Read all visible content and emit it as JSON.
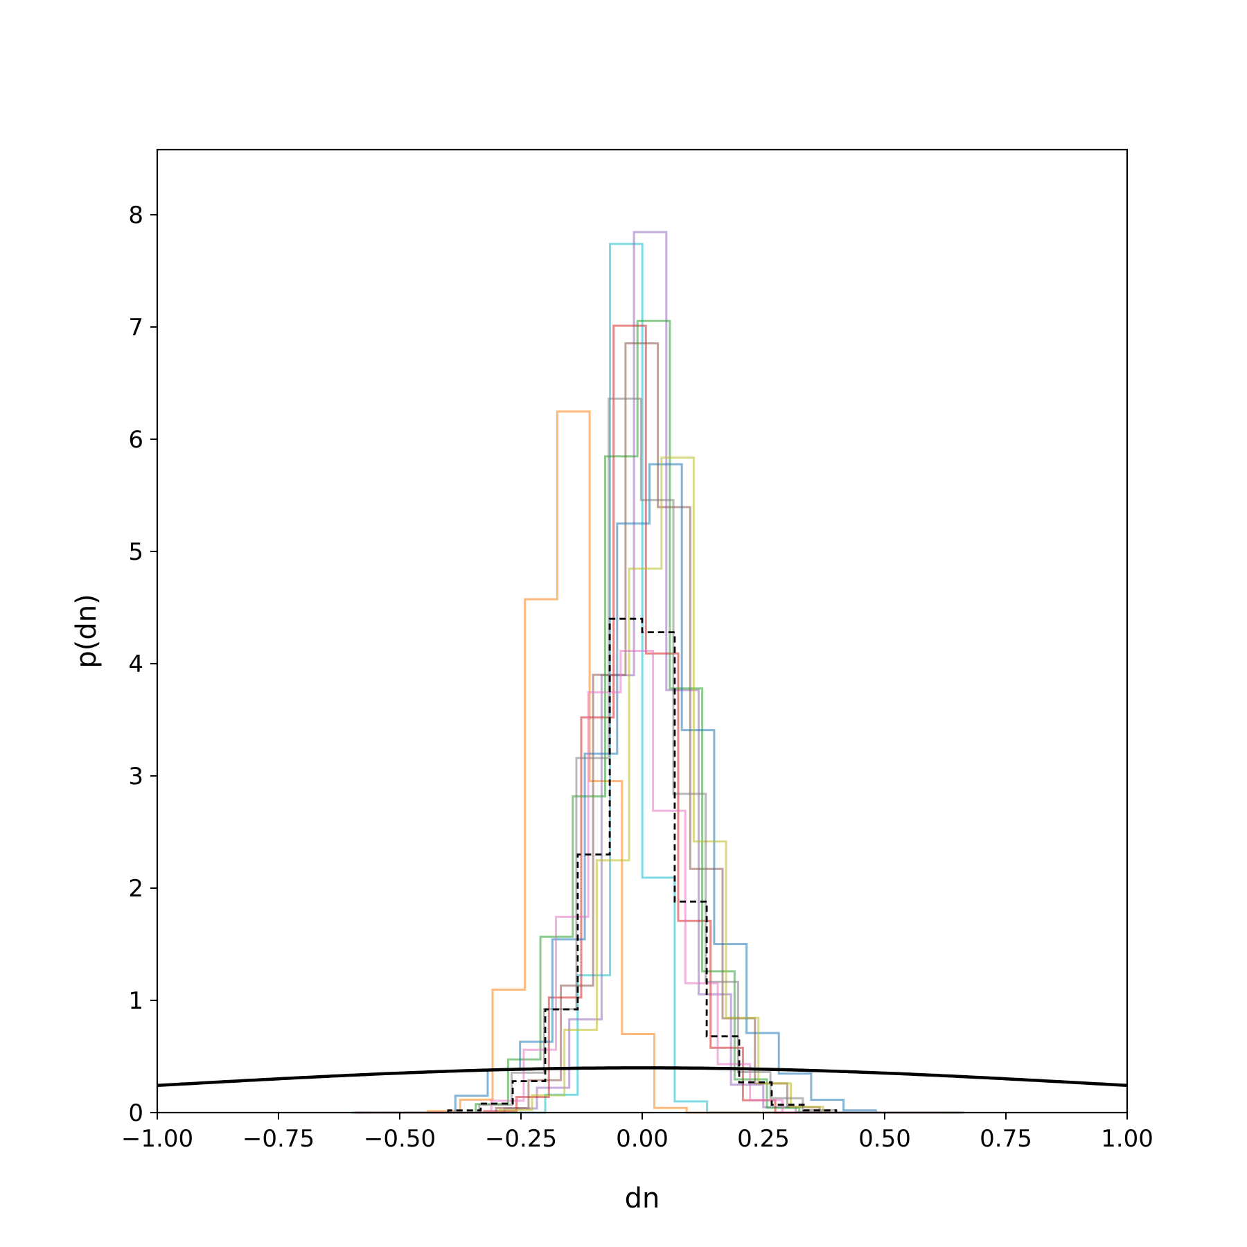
{
  "chart_data": {
    "type": "histogram",
    "title": "",
    "xlabel": "dn",
    "ylabel": "p(dn)",
    "xlim": [
      -1.0,
      1.0
    ],
    "ylim": [
      0,
      8.58
    ],
    "grid": false,
    "legend": "none",
    "x_tick_labels": [
      "−1.00",
      "−0.75",
      "−0.50",
      "−0.25",
      "0.00",
      "0.25",
      "0.50",
      "0.75",
      "1.00"
    ],
    "x_tick_values": [
      -1.0,
      -0.75,
      -0.5,
      -0.25,
      0.0,
      0.25,
      0.5,
      0.75,
      1.0
    ],
    "y_tick_labels": [
      "0",
      "1",
      "2",
      "3",
      "4",
      "5",
      "6",
      "7",
      "8"
    ],
    "y_tick_values": [
      0,
      1,
      2,
      3,
      4,
      5,
      6,
      7,
      8
    ],
    "bin_width": 0.0667,
    "colors": {
      "series": [
        "#1f77b4",
        "#ff7f0e",
        "#2ca02c",
        "#d62728",
        "#9467bd",
        "#8c564b",
        "#e377c2",
        "#7f7f7f",
        "#bcbd22",
        "#17becf"
      ],
      "dashed": "#000000",
      "curve": "#000000"
    },
    "series": [
      {
        "color": "#17becf",
        "center": -0.05,
        "x": [
          -0.15,
          -0.1,
          -0.06,
          -0.03,
          0.0,
          0.03,
          0.06,
          0.1,
          0.15
        ],
        "y": [
          0.2,
          1.2,
          5.0,
          8.05,
          5.7,
          2.3,
          0.6,
          0.1,
          0.0
        ]
      },
      {
        "color": "#ff7f0e",
        "center": -0.15,
        "x": [
          -0.35,
          -0.3,
          -0.25,
          -0.2,
          -0.15,
          -0.1,
          -0.05,
          0.0,
          0.05,
          0.1
        ],
        "y": [
          0.05,
          0.45,
          1.75,
          5.15,
          6.65,
          4.2,
          1.7,
          0.5,
          0.05,
          0.0
        ]
      },
      {
        "color": "#9467bd",
        "center": 0.02,
        "x": [
          -0.2,
          -0.12,
          -0.06,
          0.0,
          0.02,
          0.04,
          0.08,
          0.14,
          0.2,
          0.28
        ],
        "y": [
          0.1,
          0.7,
          3.4,
          6.5,
          8.15,
          6.8,
          3.9,
          1.2,
          0.3,
          0.05
        ]
      },
      {
        "color": "#d62728",
        "center": -0.03,
        "x": [
          -0.22,
          -0.14,
          -0.08,
          -0.03,
          0.02,
          0.08,
          0.14,
          0.22
        ],
        "y": [
          0.15,
          1.3,
          4.1,
          7.2,
          5.0,
          2.4,
          0.9,
          0.15
        ]
      },
      {
        "color": "#8c564b",
        "center": 0.01,
        "x": [
          -0.22,
          -0.14,
          -0.07,
          0.0,
          0.02,
          0.07,
          0.14,
          0.22,
          0.3
        ],
        "y": [
          0.1,
          0.9,
          3.8,
          6.9,
          7.45,
          5.2,
          1.8,
          0.5,
          0.08
        ]
      },
      {
        "color": "#2ca02c",
        "center": 0.0,
        "x": [
          -0.26,
          -0.18,
          -0.1,
          -0.04,
          0.02,
          0.06,
          0.12,
          0.2,
          0.28
        ],
        "y": [
          0.2,
          1.5,
          3.0,
          6.0,
          7.2,
          5.6,
          2.0,
          0.4,
          0.05
        ]
      },
      {
        "color": "#1f77b4",
        "center": 0.02,
        "x": [
          -0.32,
          -0.2,
          -0.12,
          -0.05,
          0.02,
          0.07,
          0.12,
          0.2,
          0.3,
          0.4
        ],
        "y": [
          0.25,
          0.7,
          2.1,
          4.3,
          6.4,
          5.3,
          3.2,
          1.0,
          0.4,
          0.05
        ]
      },
      {
        "color": "#bcbd22",
        "center": 0.03,
        "x": [
          -0.2,
          -0.12,
          -0.05,
          0.01,
          0.04,
          0.08,
          0.14,
          0.2,
          0.28
        ],
        "y": [
          0.1,
          0.8,
          2.5,
          5.0,
          6.95,
          5.6,
          2.4,
          0.9,
          0.2
        ]
      },
      {
        "color": "#7f7f7f",
        "center": -0.02,
        "x": [
          -0.26,
          -0.16,
          -0.08,
          -0.02,
          0.03,
          0.08,
          0.14,
          0.22,
          0.32
        ],
        "y": [
          0.15,
          1.0,
          4.0,
          7.2,
          5.5,
          3.4,
          1.5,
          0.4,
          0.05
        ]
      },
      {
        "color": "#e377c2",
        "center": -0.04,
        "x": [
          -0.24,
          -0.16,
          -0.1,
          -0.04,
          0.02,
          0.08,
          0.14,
          0.22
        ],
        "y": [
          0.2,
          1.2,
          3.3,
          4.5,
          3.7,
          2.0,
          0.8,
          0.2
        ]
      }
    ],
    "dashed_series": {
      "name": "",
      "edges": [
        -0.4,
        -0.333,
        -0.267,
        -0.2,
        -0.133,
        -0.067,
        0.0,
        0.067,
        0.133,
        0.2,
        0.267,
        0.333,
        0.4
      ],
      "values": [
        0.02,
        0.08,
        0.28,
        0.92,
        2.3,
        4.4,
        4.28,
        1.88,
        0.68,
        0.27,
        0.07,
        0.02
      ]
    },
    "curve": {
      "type": "gaussian",
      "mu": 0.0,
      "sigma": 1.0,
      "x_range": [
        -1.0,
        1.0
      ]
    }
  }
}
